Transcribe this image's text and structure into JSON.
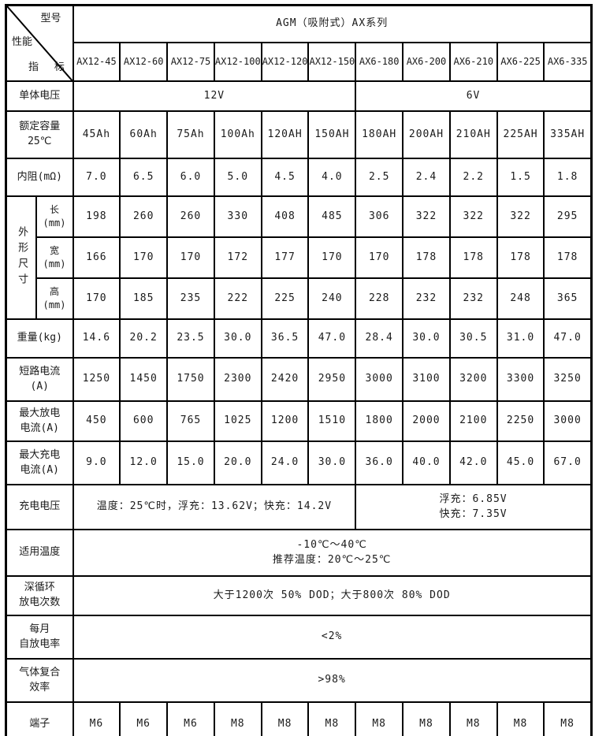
{
  "table": {
    "corner": {
      "model": "型号",
      "performance": "性能",
      "index": "指 标"
    },
    "series_title": "AGM（吸附式）AX系列",
    "models": [
      "AX12-45",
      "AX12-60",
      "AX12-75",
      "AX12-100",
      "AX12-120",
      "AX12-150",
      "AX6-180",
      "AX6-200",
      "AX6-210",
      "AX6-225",
      "AX6-335"
    ],
    "rows": [
      {
        "label": "单体电压",
        "spans": [
          {
            "text": "12V",
            "cols": 6
          },
          {
            "text": "6V",
            "cols": 5
          }
        ]
      },
      {
        "label": "额定容量\n25℃",
        "values": [
          "45Ah",
          "60Ah",
          "75Ah",
          "100Ah",
          "120AH",
          "150AH",
          "180AH",
          "200AH",
          "210AH",
          "225AH",
          "335AH"
        ]
      },
      {
        "label": "内阻(mΩ)",
        "values": [
          "7.0",
          "6.5",
          "6.0",
          "5.0",
          "4.5",
          "4.0",
          "2.5",
          "2.4",
          "2.2",
          "1.5",
          "1.8"
        ]
      },
      {
        "group": "外形尺寸",
        "sub": [
          {
            "label": "长\n(mm)",
            "values": [
              "198",
              "260",
              "260",
              "330",
              "408",
              "485",
              "306",
              "322",
              "322",
              "322",
              "295"
            ]
          },
          {
            "label": "宽\n(mm)",
            "values": [
              "166",
              "170",
              "170",
              "172",
              "177",
              "170",
              "170",
              "178",
              "178",
              "178",
              "178"
            ]
          },
          {
            "label": "高\n(mm)",
            "values": [
              "170",
              "185",
              "235",
              "222",
              "225",
              "240",
              "228",
              "232",
              "232",
              "248",
              "365"
            ]
          }
        ]
      },
      {
        "label": "重量(kg)",
        "values": [
          "14.6",
          "20.2",
          "23.5",
          "30.0",
          "36.5",
          "47.0",
          "28.4",
          "30.0",
          "30.5",
          "31.0",
          "47.0"
        ]
      },
      {
        "label": "短路电流\n(A)",
        "values": [
          "1250",
          "1450",
          "1750",
          "2300",
          "2420",
          "2950",
          "3000",
          "3100",
          "3200",
          "3300",
          "3250"
        ]
      },
      {
        "label": "最大放电\n电流(A)",
        "values": [
          "450",
          "600",
          "765",
          "1025",
          "1200",
          "1510",
          "1800",
          "2000",
          "2100",
          "2250",
          "3000"
        ]
      },
      {
        "label": "最大充电\n电流(A)",
        "values": [
          "9.0",
          "12.0",
          "15.0",
          "20.0",
          "24.0",
          "30.0",
          "36.0",
          "40.0",
          "42.0",
          "45.0",
          "67.0"
        ]
      },
      {
        "label": "充电电压",
        "spans": [
          {
            "text": "温度：25℃时，浮充：13.62V；快充：14.2V",
            "cols": 6
          },
          {
            "text": "浮充：6.85V\n快充：7.35V",
            "cols": 5
          }
        ]
      },
      {
        "label": "适用温度",
        "spans": [
          {
            "text": "-10℃～40℃\n推荐温度：20℃～25℃",
            "cols": 11
          }
        ]
      },
      {
        "label": "深循环\n放电次数",
        "spans": [
          {
            "text": "大于1200次 50% DOD；大于800次 80% DOD",
            "cols": 11
          }
        ]
      },
      {
        "label": "每月\n自放电率",
        "spans": [
          {
            "text": "<2%",
            "cols": 11
          }
        ]
      },
      {
        "label": "气体复合\n效率",
        "spans": [
          {
            "text": ">98%",
            "cols": 11
          }
        ]
      },
      {
        "label": "端子",
        "values": [
          "M6",
          "M6",
          "M6",
          "M8",
          "M8",
          "M8",
          "M8",
          "M8",
          "M8",
          "M8",
          "M8"
        ]
      }
    ]
  }
}
